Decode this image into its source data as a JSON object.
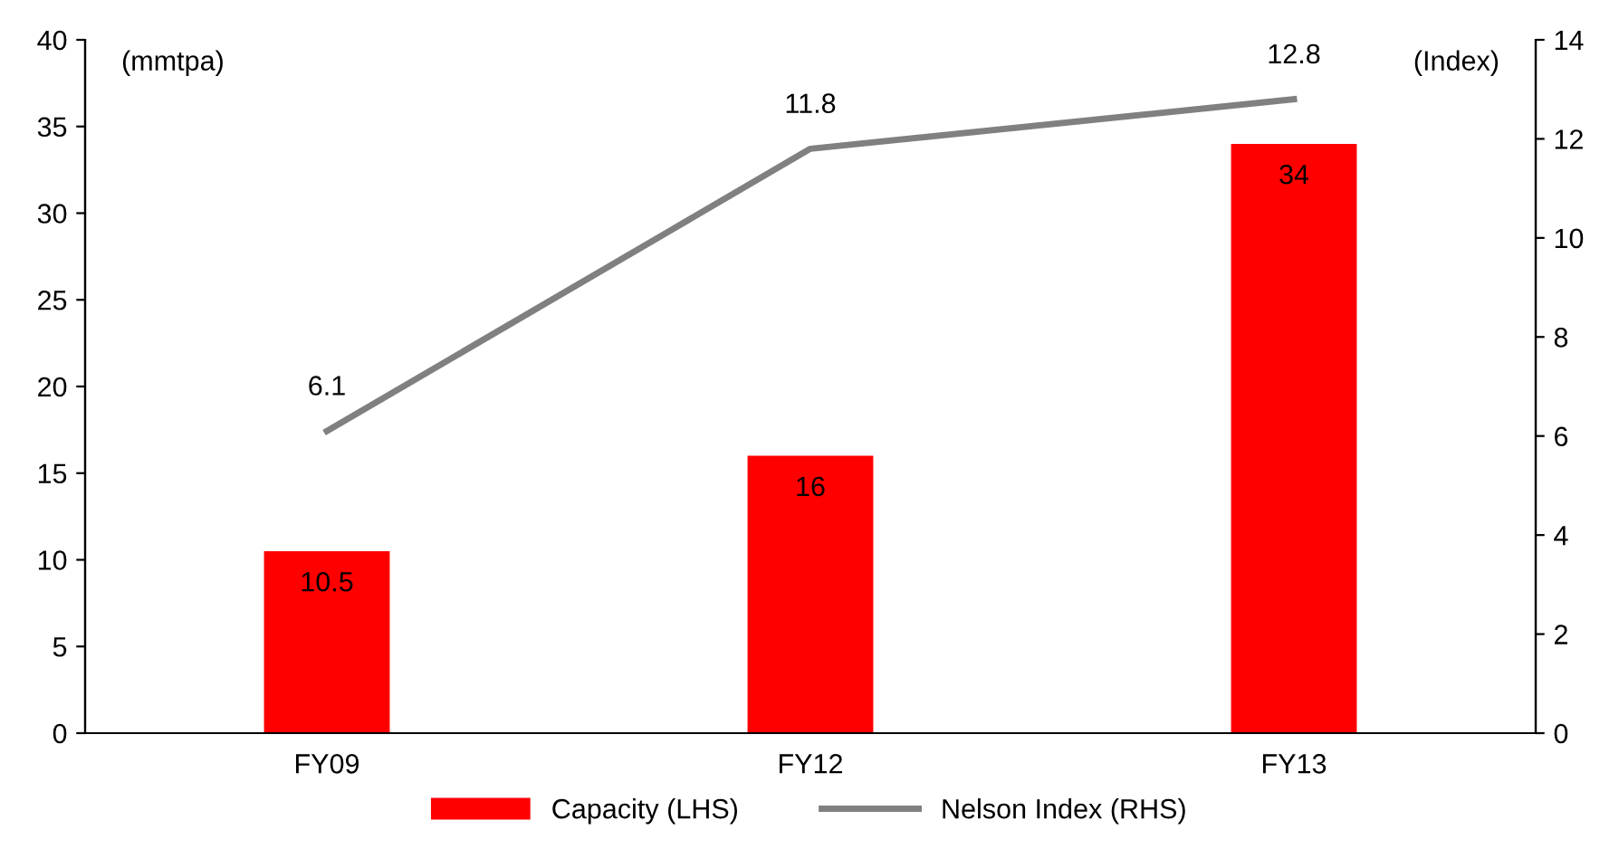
{
  "chart_data": {
    "type": "bar",
    "categories": [
      "FY09",
      "FY12",
      "FY13"
    ],
    "series": [
      {
        "name": "Capacity (LHS)",
        "color": "#ff0000",
        "values": [
          10.5,
          16,
          34
        ]
      },
      {
        "name": "Nelson Index (RHS)",
        "type": "line",
        "axis": "y2",
        "color": "#808080",
        "values": [
          6.1,
          11.8,
          12.8
        ]
      }
    ],
    "ylabel": "(mmtpa)",
    "y2label": "(Index)",
    "ylim": [
      0,
      40
    ],
    "yticks": [
      0,
      5,
      10,
      15,
      20,
      25,
      30,
      35,
      40
    ],
    "y2lim": [
      0,
      14
    ],
    "y2ticks": [
      0,
      2,
      4,
      6,
      8,
      10,
      12,
      14
    ],
    "data_labels": true,
    "legend": "bottom",
    "grid": false,
    "marker": "none",
    "line_style": "solid"
  }
}
